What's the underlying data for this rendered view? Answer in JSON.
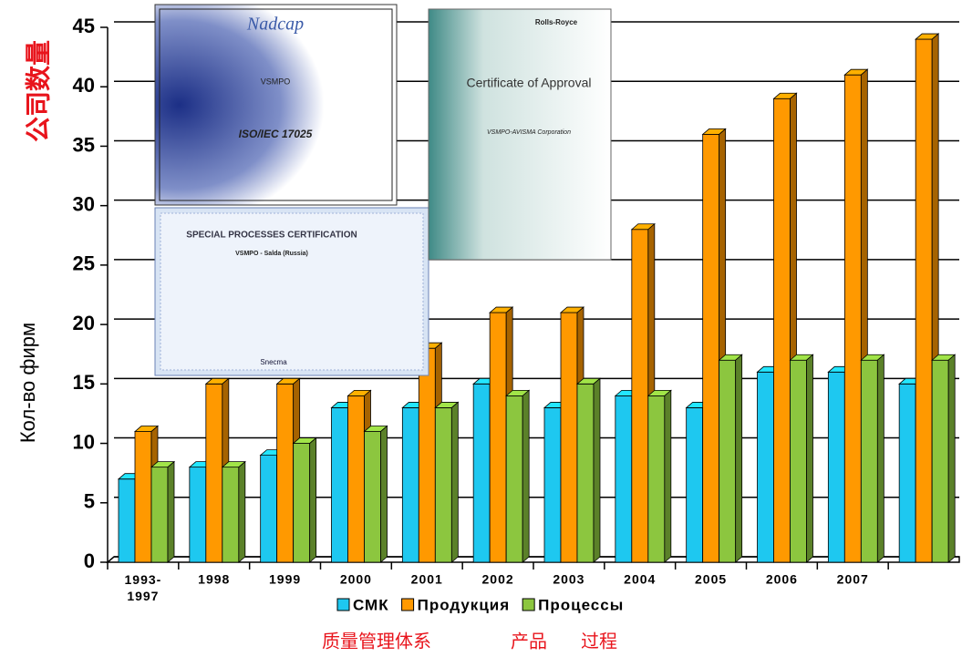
{
  "chart_data": {
    "type": "bar3d",
    "ylabel": "Кол-во фирм",
    "ylabel_cn": "公司数量",
    "categories": [
      "1993-\n1997",
      "1998",
      "1999",
      "2000",
      "2001",
      "2002",
      "2003",
      "2004",
      "2005",
      "2006",
      "2007",
      null
    ],
    "series": [
      {
        "name": "СМК",
        "color": "#1ec8f0",
        "values": [
          7,
          8,
          9,
          13,
          13,
          15,
          13,
          14,
          13,
          16,
          16,
          15
        ]
      },
      {
        "name": "Продукция",
        "color": "#ff9900",
        "values": [
          11,
          15,
          15,
          14,
          18,
          21,
          21,
          28,
          36,
          39,
          41,
          44
        ]
      },
      {
        "name": "Процессы",
        "color": "#8cc63f",
        "values": [
          8,
          8,
          10,
          11,
          13,
          14,
          15,
          14,
          17,
          17,
          17,
          17
        ]
      }
    ],
    "series_cn": [
      "质量管理体系",
      "产品",
      "过程"
    ],
    "ylim": [
      0,
      45
    ],
    "yticks": [
      0,
      5,
      10,
      15,
      20,
      25,
      30,
      35,
      40,
      45
    ],
    "grid": true
  },
  "images": [
    {
      "title": "Nadcap",
      "subtitle": "VSMPO",
      "standard": "ISO/IEC 17025"
    },
    {
      "title": "SPECIAL PROCESSES CERTIFICATION",
      "subtitle": "VSMPO - Salda (Russia)",
      "brand": "Snecma"
    },
    {
      "title": "Certificate of Approval",
      "brand": "Rolls-Royce",
      "subtitle": "VSMPO-AVISMA Corporation"
    }
  ]
}
